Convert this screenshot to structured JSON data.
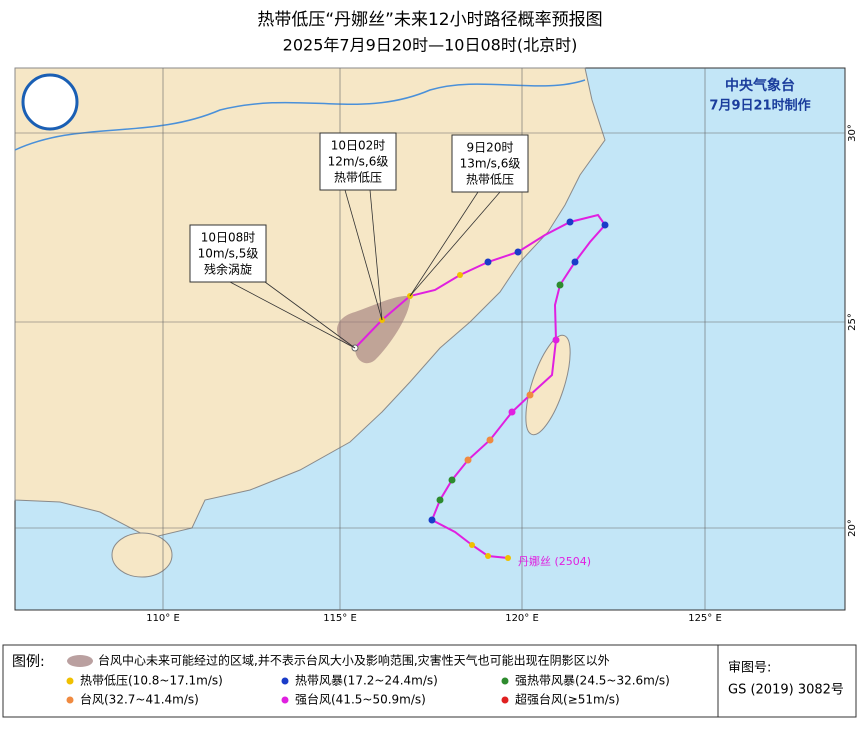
{
  "header": {
    "title": "热带低压“丹娜丝”未来12小时路径概率预报图",
    "subtitle": "2025年7月9日20时—10日08时(北京时)"
  },
  "agency": {
    "name": "中央气象台",
    "issued": "7月9日21时制作"
  },
  "map": {
    "lon_labels": [
      "110° E",
      "115° E",
      "120° E",
      "125° E"
    ],
    "lat_labels": [
      "30°",
      "25°",
      "20°"
    ],
    "storm_label": "丹娜丝 (2504)",
    "callouts": [
      {
        "time": "10日08时",
        "wind": "10m/s,5级",
        "level": "残余涡旋"
      },
      {
        "time": "10日02时",
        "wind": "12m/s,6级",
        "level": "热带低压"
      },
      {
        "time": "9日20时",
        "wind": "13m/s,6级",
        "level": "热带低压"
      }
    ]
  },
  "legend": {
    "title": "图例:",
    "cone": "台风中心未来可能经过的区域,并不表示台风大小及影响范围,灾害性天气也可能出现在阴影区以外",
    "items": [
      {
        "label": "热带低压(10.8~17.1m/s)",
        "color": "#f0c000"
      },
      {
        "label": "热带风暴(17.2~24.4m/s)",
        "color": "#1a3cc8"
      },
      {
        "label": "强热带风暴(24.5~32.6m/s)",
        "color": "#2e8b2e"
      },
      {
        "label": "台风(32.7~41.4m/s)",
        "color": "#f08a40"
      },
      {
        "label": "强台风(41.5~50.9m/s)",
        "color": "#e020e0"
      },
      {
        "label": "超强台风(≥51m/s)",
        "color": "#e02020"
      }
    ]
  },
  "approval": {
    "title": "审图号:",
    "number": "GS (2019) 3082号"
  }
}
